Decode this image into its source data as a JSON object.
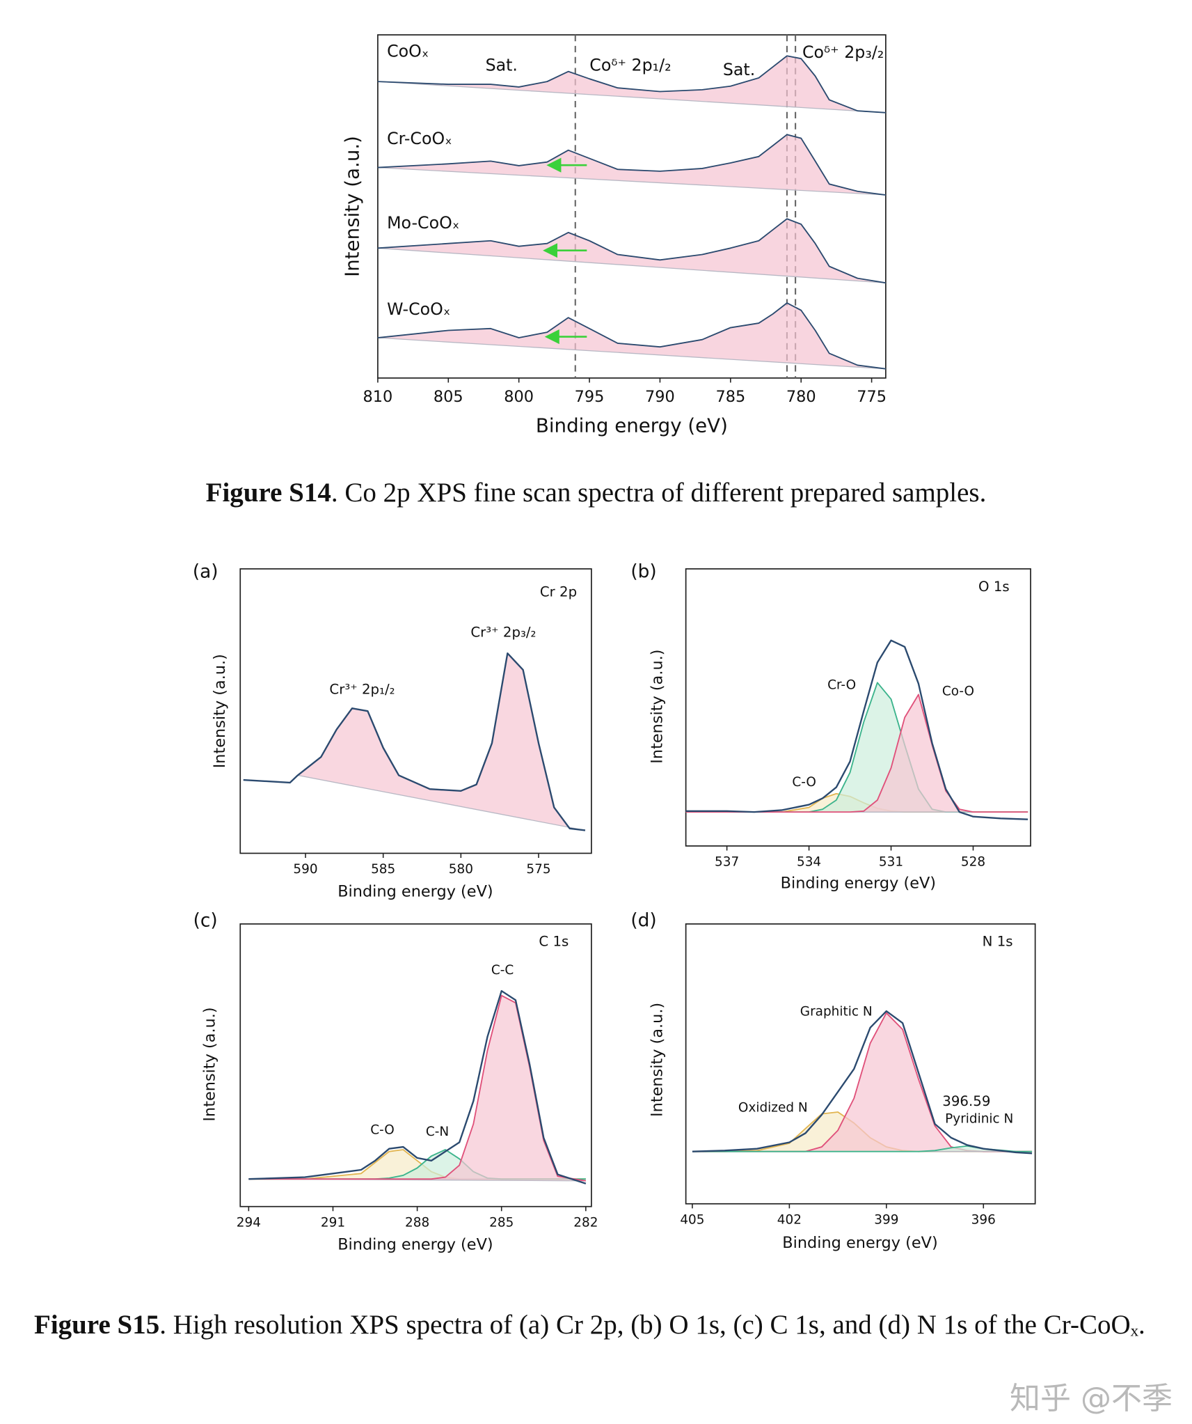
{
  "chart_data": [
    {
      "type": "line",
      "ylabel": "Intensity (a.u.)",
      "xlabel": "Binding energy (eV)",
      "xlim": [
        810,
        774
      ],
      "xticks": [
        810,
        805,
        800,
        795,
        790,
        785,
        780,
        775
      ],
      "ylim": [
        0,
        375
      ],
      "x": [
        810,
        805,
        802,
        800,
        798,
        796.5,
        795,
        793,
        790,
        787,
        785,
        783,
        782,
        781,
        780,
        779,
        778,
        776,
        774
      ],
      "series": [
        {
          "name": "CoOₓ",
          "color": "#2b4a6f",
          "fill": "#f5c3d1",
          "values": [
            324,
            321,
            321,
            318,
            324,
            335,
            327,
            317,
            313,
            315,
            319,
            328,
            340,
            352,
            349,
            330,
            304,
            292,
            290
          ]
        },
        {
          "name": "Cr-CoOₓ",
          "color": "#2b4a6f",
          "fill": "#f5c3d1",
          "values": [
            230,
            234,
            237,
            232,
            236,
            249,
            240,
            228,
            226,
            229,
            235,
            242,
            254,
            266,
            262,
            237,
            212,
            204,
            200
          ]
        },
        {
          "name": "Mo-CoOₓ",
          "color": "#2b4a6f",
          "fill": "#f5c3d1",
          "values": [
            142,
            147,
            150,
            144,
            147,
            159,
            150,
            135,
            129,
            135,
            142,
            150,
            162,
            174,
            168,
            147,
            122,
            109,
            104
          ]
        },
        {
          "name": "W-CoOₓ",
          "color": "#2b4a6f",
          "fill": "#f5c3d1",
          "values": [
            44,
            52,
            54,
            44,
            50,
            66,
            54,
            38,
            34,
            42,
            55,
            60,
            70,
            82,
            74,
            52,
            27,
            14,
            10
          ]
        }
      ],
      "reference_lines": [
        796,
        781,
        780.4
      ],
      "annotations": [
        "Sat.",
        "Coᵟ⁺ 2p₁/₂",
        "Sat.",
        "Coᵟ⁺ 2p₃/₂"
      ]
    },
    {
      "type": "line",
      "panel_label": "(a)",
      "title": "Cr 2p",
      "ylabel": "Intensity (a.u.)",
      "xlabel": "Binding energy (eV)",
      "xlim": [
        594.2,
        571.6
      ],
      "xticks": [
        590,
        585,
        580,
        575
      ],
      "ylim": [
        0,
        310
      ],
      "x": [
        594,
        591,
        590.5,
        589,
        588,
        587,
        586,
        585,
        584,
        582,
        580,
        579,
        578,
        577,
        576,
        575,
        574,
        573,
        572
      ],
      "series": [
        {
          "color": "#c9a0ad",
          "fill": "#f7c6d3",
          "values": [
            null,
            null,
            85,
            105,
            135,
            158,
            155,
            115,
            85,
            70,
            68,
            75,
            120,
            218,
            200,
            120,
            50,
            27,
            25
          ]
        },
        {
          "color": "#2b4a6f",
          "values": [
            80,
            77,
            85,
            105,
            135,
            158,
            155,
            115,
            85,
            70,
            68,
            75,
            120,
            218,
            200,
            120,
            50,
            27,
            25
          ]
        }
      ],
      "annotations": [
        "Cr³⁺ 2p₁/₂",
        "Cr³⁺ 2p₃/₂"
      ]
    },
    {
      "type": "line",
      "panel_label": "(b)",
      "title": "O 1s",
      "ylabel": "Intensity (a.u.)",
      "xlabel": "Binding energy (eV)",
      "xlim": [
        538.5,
        525.9
      ],
      "xticks": [
        537,
        534,
        531,
        528
      ],
      "ylim": [
        0,
        302
      ],
      "x": [
        538.5,
        537,
        536,
        535,
        534,
        533.5,
        533,
        532.5,
        532,
        531.5,
        531,
        530.5,
        530,
        529.5,
        529,
        528.5,
        528,
        527,
        526
      ],
      "series": [
        {
          "name": "C-O",
          "color": "#e2b550",
          "fill": "#f7ebc8",
          "values": [
            37,
            37,
            37,
            37,
            42,
            52,
            57,
            54,
            47,
            41,
            38,
            37,
            37,
            37,
            37,
            37,
            37,
            37,
            37
          ]
        },
        {
          "name": "Cr-O",
          "color": "#3cb48c",
          "fill": "#cdeedd",
          "values": [
            37,
            37,
            37,
            37,
            37,
            40,
            50,
            80,
            135,
            178,
            160,
            110,
            62,
            40,
            37,
            37,
            37,
            37,
            37
          ]
        },
        {
          "name": "Co-O",
          "color": "#e0507a",
          "fill": "#f7c6d3",
          "values": [
            37,
            37,
            37,
            37,
            37,
            37,
            37,
            37,
            38,
            50,
            85,
            140,
            165,
            110,
            60,
            40,
            37,
            37,
            37
          ]
        },
        {
          "color": "#2b4a6f",
          "values": [
            38,
            38,
            37,
            39,
            45,
            52,
            64,
            92,
            147,
            200,
            224,
            217,
            177,
            112,
            62,
            37,
            32,
            30,
            29
          ]
        }
      ]
    },
    {
      "type": "line",
      "panel_label": "(c)",
      "title": "C 1s",
      "ylabel": "Intensity (a.u.)",
      "xlabel": "Binding energy (eV)",
      "xlim": [
        294.3,
        281.8
      ],
      "xticks": [
        294,
        291,
        288,
        285,
        282
      ],
      "ylim": [
        0,
        308
      ],
      "x": [
        294,
        292,
        290,
        289.5,
        289,
        288.5,
        288,
        287.5,
        287,
        286.5,
        286,
        285.5,
        285,
        284.5,
        284,
        283.5,
        283,
        282
      ],
      "series": [
        {
          "name": "C-O",
          "color": "#e2b550",
          "fill": "#f7ebc8",
          "values": [
            30,
            30,
            36,
            48,
            60,
            62,
            50,
            38,
            32,
            30,
            30,
            30,
            30,
            30,
            30,
            30,
            30,
            30
          ]
        },
        {
          "name": "C-N",
          "color": "#3cb48c",
          "fill": "#cdeedd",
          "values": [
            30,
            30,
            30,
            30,
            31,
            34,
            42,
            55,
            62,
            52,
            38,
            31,
            30,
            30,
            30,
            30,
            30,
            30
          ]
        },
        {
          "name": "C-C",
          "color": "#e0507a",
          "fill": "#f7c6d3",
          "values": [
            30,
            30,
            30,
            30,
            30,
            30,
            30,
            30,
            32,
            45,
            90,
            170,
            230,
            222,
            152,
            72,
            33,
            28
          ]
        },
        {
          "color": "#2b4a6f",
          "values": [
            30,
            32,
            40,
            50,
            63,
            65,
            53,
            50,
            60,
            70,
            115,
            185,
            235,
            225,
            155,
            75,
            35,
            25
          ]
        }
      ]
    },
    {
      "type": "line",
      "panel_label": "(d)",
      "title": "N 1s",
      "ylabel": "Intensity (a.u.)",
      "xlabel": "Binding energy (eV)",
      "xlim": [
        405.2,
        394.4
      ],
      "xticks": [
        405,
        402,
        399,
        396
      ],
      "ylim": [
        0,
        305
      ],
      "x": [
        405,
        404,
        403,
        402,
        401.5,
        401,
        400.5,
        400,
        399.5,
        399,
        398.5,
        398,
        397.5,
        397,
        396.5,
        396,
        395,
        394.5
      ],
      "series": [
        {
          "name": "Oxidized N",
          "color": "#e2b550",
          "fill": "#f7ebc8",
          "values": [
            57,
            57,
            58,
            66,
            82,
            98,
            100,
            88,
            72,
            62,
            58,
            57,
            57,
            57,
            57,
            57,
            57,
            57
          ]
        },
        {
          "name": "Graphitic N",
          "color": "#e0507a",
          "fill": "#f7c6d3",
          "values": [
            57,
            57,
            57,
            57,
            57,
            62,
            80,
            115,
            175,
            208,
            190,
            135,
            85,
            62,
            58,
            57,
            57,
            57
          ]
        },
        {
          "name": "Pyridinic N",
          "color": "#3cb48c",
          "fill": "#cdeedd",
          "values": [
            57,
            57,
            57,
            57,
            57,
            57,
            57,
            57,
            57,
            57,
            57,
            57,
            58,
            61,
            63,
            60,
            57,
            57
          ]
        },
        {
          "color": "#2b4a6f",
          "values": [
            57,
            58,
            60,
            67,
            77,
            97,
            122,
            147,
            192,
            210,
            197,
            142,
            87,
            72,
            64,
            60,
            56,
            55
          ]
        }
      ],
      "annotations": [
        "396.59"
      ]
    }
  ],
  "captions": [
    {
      "label": "Figure S14",
      "text": ". Co 2p XPS fine scan spectra of different prepared samples."
    },
    {
      "label": "Figure S15",
      "text": ". High resolution XPS spectra of (a) Cr 2p, (b) O 1s, (c) C 1s, and (d) N 1s of the Cr-CoOₓ."
    }
  ],
  "watermark": "知乎 @不季"
}
